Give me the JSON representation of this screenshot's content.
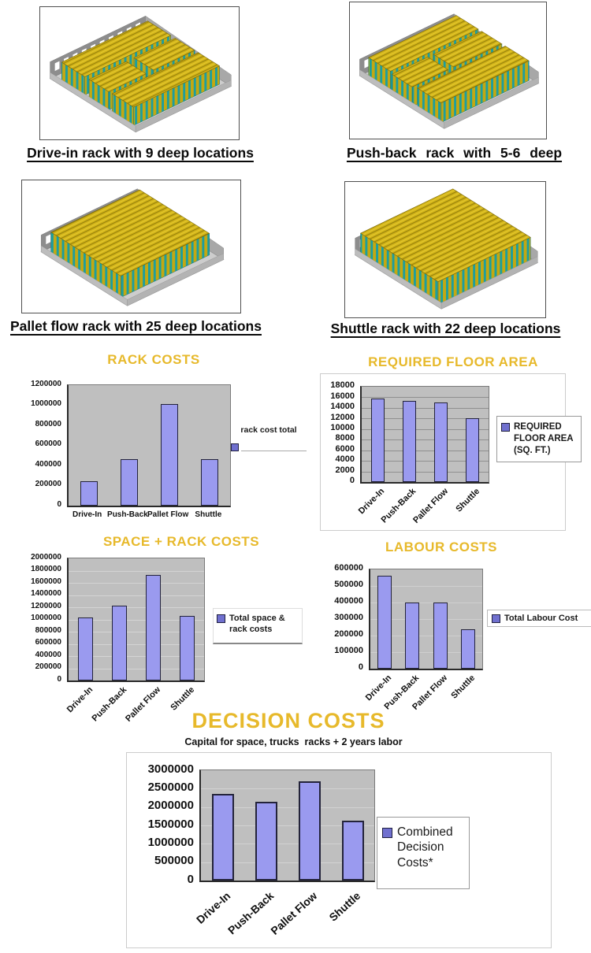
{
  "page": {
    "background": "#ffffff"
  },
  "colors": {
    "title_gold": "#E7B92B",
    "bar_fill": "#9A9AEF",
    "bar_border": "#23233A",
    "plot_background": "#BFBFBF",
    "legend_square": "#7070CF",
    "rack_yellow": "#D2B318",
    "rack_teal": "#1D9E9E",
    "tray_gray": "#8D8D8D"
  },
  "figures": [
    {
      "caption": "Drive-in rack with 9 deep locations",
      "image": "drive-in-rack-3d-render"
    },
    {
      "caption": "Push-back rack with 5-6 deep",
      "image": "push-back-rack-3d-render"
    },
    {
      "caption": "Pallet flow rack with 25 deep locations",
      "image": "pallet-flow-rack-3d-render"
    },
    {
      "caption": "Shuttle rack with 22 deep locations",
      "image": "shuttle-rack-3d-render"
    }
  ],
  "chart_data": [
    {
      "type": "bar",
      "title": "RACK COSTS",
      "categories": [
        "Drive-In",
        "Push-Back",
        "Pallet Flow",
        "Shuttle"
      ],
      "values": [
        240000,
        460000,
        1010000,
        465000
      ],
      "ylim": [
        0,
        1200000
      ],
      "ytick_step": 200000,
      "grid": false,
      "legend": "rack cost total",
      "legend_position": "right",
      "xlabel_rotation": 0
    },
    {
      "type": "bar",
      "title": "REQUIRED FLOOR AREA",
      "categories": [
        "Drive-In",
        "Push-Back",
        "Pallet Flow",
        "Shuttle"
      ],
      "values": [
        15800,
        15300,
        15000,
        12000
      ],
      "ylim": [
        0,
        18000
      ],
      "ytick_step": 2000,
      "grid": true,
      "legend": "REQUIRED FLOOR AREA (SQ. FT.)",
      "legend_position": "right",
      "xlabel_rotation": 45
    },
    {
      "type": "bar",
      "title": "SPACE + RACK COSTS",
      "categories": [
        "Drive-In",
        "Push-Back",
        "Pallet Flow",
        "Shuttle"
      ],
      "values": [
        1030000,
        1220000,
        1730000,
        1060000
      ],
      "ylim": [
        0,
        2000000
      ],
      "ytick_step": 200000,
      "grid": true,
      "legend": "Total space & rack costs",
      "legend_position": "right",
      "xlabel_rotation": 45
    },
    {
      "type": "bar",
      "title": "LABOUR COSTS",
      "categories": [
        "Drive-In",
        "Push-Back",
        "Pallet Flow",
        "Shuttle"
      ],
      "values": [
        560000,
        400000,
        400000,
        240000
      ],
      "ylim": [
        0,
        600000
      ],
      "ytick_step": 100000,
      "grid": true,
      "legend": "Total Labour Cost",
      "legend_position": "right",
      "xlabel_rotation": 45
    },
    {
      "type": "bar",
      "title": "DECISION COSTS",
      "subtitle": "Capital for space, trucks  racks + 2 years labor",
      "categories": [
        "Drive-In",
        "Push-Back",
        "Pallet Flow",
        "Shuttle"
      ],
      "values": [
        2350000,
        2150000,
        2700000,
        1630000
      ],
      "ylim": [
        0,
        3000000
      ],
      "ytick_step": 500000,
      "grid": true,
      "legend": "Combined Decision Costs*",
      "legend_position": "right",
      "xlabel_rotation": 42
    }
  ]
}
